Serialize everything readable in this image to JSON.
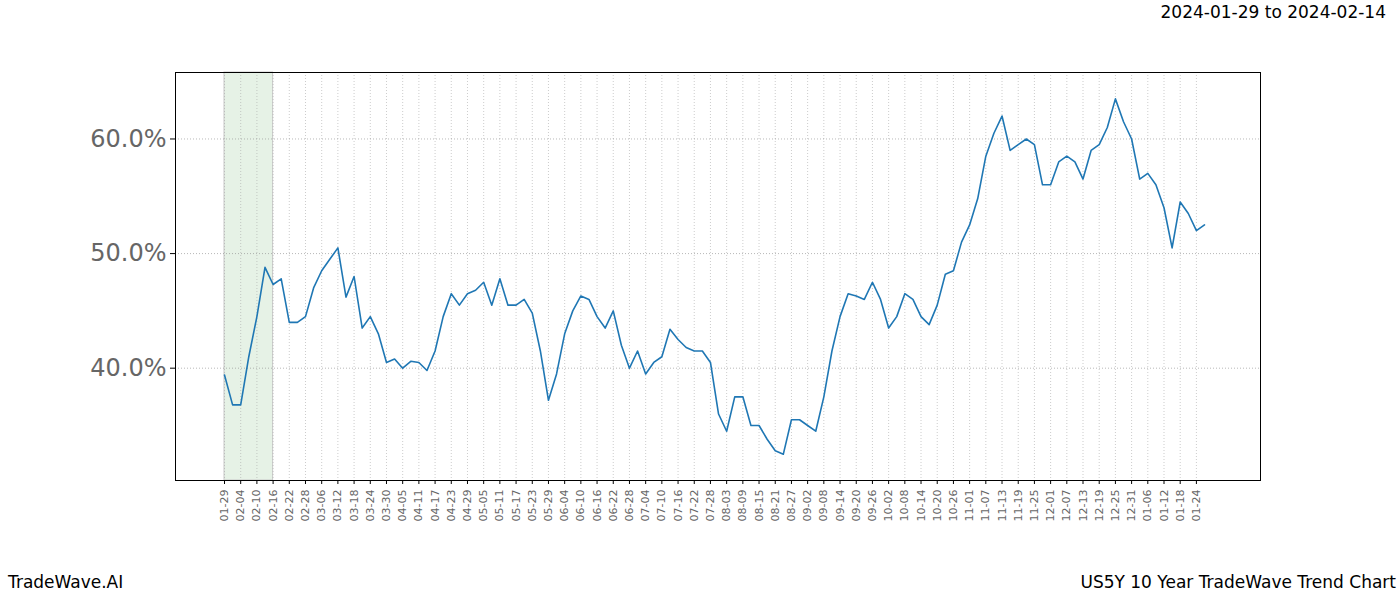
{
  "chart_data": {
    "type": "line",
    "title": "US5Y 10 Year TradeWave Trend Chart",
    "subtitle": "2024-01-29 to 2024-02-14",
    "source": "TradeWave.AI",
    "color": "#1f77b4",
    "grid": true,
    "shaded_range": [
      "01-29",
      "02-16"
    ],
    "categories": [
      "01-29",
      null,
      "02-04",
      null,
      "02-10",
      null,
      "02-16",
      null,
      "02-22",
      null,
      "02-28",
      null,
      "03-06",
      null,
      "03-12",
      null,
      "03-18",
      null,
      "03-24",
      null,
      "03-30",
      null,
      "04-05",
      null,
      "04-11",
      null,
      "04-17",
      null,
      "04-23",
      null,
      "04-29",
      null,
      "05-05",
      null,
      "05-11",
      null,
      "05-17",
      null,
      "05-23",
      null,
      "05-29",
      null,
      "06-04",
      null,
      "06-10",
      null,
      "06-16",
      null,
      "06-22",
      null,
      "06-28",
      null,
      "07-04",
      null,
      "07-10",
      null,
      "07-16",
      null,
      "07-22",
      null,
      "07-28",
      null,
      "08-03",
      null,
      "08-09",
      null,
      "08-15",
      null,
      "08-21",
      null,
      "08-27",
      null,
      "09-02",
      null,
      "09-08",
      null,
      "09-14",
      null,
      "09-20",
      null,
      "09-26",
      null,
      "10-02",
      null,
      "10-08",
      null,
      "10-14",
      null,
      "10-20",
      null,
      "10-26",
      null,
      "11-01",
      null,
      "11-07",
      null,
      "11-13",
      null,
      "11-19",
      null,
      "11-25",
      null,
      "12-01",
      null,
      "12-07",
      null,
      "12-13",
      null,
      "12-19",
      null,
      "12-25",
      null,
      "12-31",
      null,
      "01-06",
      null,
      "01-12",
      null,
      "01-18",
      null,
      "01-24",
      null
    ],
    "values": [
      39.4,
      36.8,
      36.8,
      41.0,
      44.5,
      48.8,
      47.3,
      47.8,
      44.0,
      44.0,
      44.5,
      47.0,
      48.5,
      49.5,
      50.5,
      46.2,
      48.0,
      43.5,
      44.5,
      43.0,
      40.5,
      40.8,
      40.0,
      40.6,
      40.5,
      39.8,
      41.5,
      44.5,
      46.5,
      45.5,
      46.5,
      46.8,
      47.5,
      45.5,
      47.8,
      45.5,
      45.5,
      46.0,
      44.8,
      41.5,
      37.2,
      39.5,
      43.0,
      45.0,
      46.3,
      46.0,
      44.5,
      43.5,
      45.0,
      42.0,
      40.0,
      41.5,
      39.5,
      40.5,
      41.0,
      43.4,
      42.5,
      41.8,
      41.5,
      41.5,
      40.5,
      36.0,
      34.5,
      37.5,
      37.5,
      35.0,
      35.0,
      33.8,
      32.8,
      32.5,
      35.5,
      35.5,
      35.0,
      34.5,
      37.5,
      41.5,
      44.5,
      46.5,
      46.3,
      46.0,
      47.5,
      46.0,
      43.5,
      44.5,
      46.5,
      46.0,
      44.5,
      43.8,
      45.5,
      48.2,
      48.5,
      51.0,
      52.5,
      54.8,
      58.5,
      60.5,
      62.0,
      59.0,
      59.5,
      60.0,
      59.5,
      56.0,
      56.0,
      58.0,
      58.5,
      58.0,
      56.5,
      59.0,
      59.5,
      61.0,
      63.5,
      61.5,
      60.0,
      56.5,
      57.0,
      56.0,
      54.0,
      50.5,
      54.5,
      53.5,
      52.0,
      52.5
    ],
    "ylim": [
      30.2,
      65.8
    ],
    "yticks": [
      {
        "value": 40,
        "label": "40.0%"
      },
      {
        "value": 50,
        "label": "50.0%"
      },
      {
        "value": 60,
        "label": "60.0%"
      }
    ]
  }
}
